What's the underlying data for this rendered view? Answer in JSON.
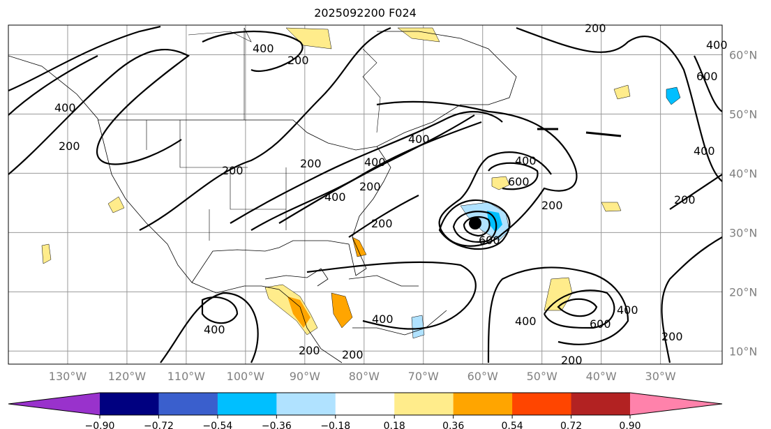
{
  "title": "2025092200 F024",
  "map": {
    "extent": {
      "lon_min": -140,
      "lon_max": -19.6,
      "lat_min": 7.8,
      "lat_max": 65
    },
    "lon_ticks": [
      {
        "value": -130,
        "label": "130°W"
      },
      {
        "value": -120,
        "label": "120°W"
      },
      {
        "value": -110,
        "label": "110°W"
      },
      {
        "value": -100,
        "label": "100°W"
      },
      {
        "value": -90,
        "label": "90°W"
      },
      {
        "value": -80,
        "label": "80°W"
      },
      {
        "value": -70,
        "label": "70°W"
      },
      {
        "value": -60,
        "label": "60°W"
      },
      {
        "value": -50,
        "label": "50°W"
      },
      {
        "value": -40,
        "label": "40°W"
      },
      {
        "value": -30,
        "label": "30°W"
      }
    ],
    "lat_ticks": [
      {
        "value": 60,
        "label": "60°N"
      },
      {
        "value": 50,
        "label": "50°N"
      },
      {
        "value": 40,
        "label": "40°N"
      },
      {
        "value": 30,
        "label": "30°N"
      },
      {
        "value": 20,
        "label": "20°N"
      },
      {
        "value": 10,
        "label": "10°N"
      }
    ],
    "contour_labels": [
      "400",
      "200",
      "400",
      "200",
      "200",
      "400",
      "200",
      "400",
      "400",
      "200",
      "200",
      "400",
      "600",
      "200",
      "600",
      "400",
      "400",
      "600",
      "400",
      "200",
      "200",
      "400",
      "200",
      "200",
      "600",
      "400",
      "200",
      "400",
      "200"
    ]
  },
  "colorbar": {
    "colors": [
      "#9932CC",
      "#000080",
      "#3A5FCD",
      "#00BFFF",
      "#B0E2FF",
      "#FFFFFF",
      "#FFEC8B",
      "#FFA500",
      "#FF4500",
      "#B22222",
      "#FF82AB"
    ],
    "ticks": [
      "−0.90",
      "−0.72",
      "−0.54",
      "−0.36",
      "−0.18",
      "0.18",
      "0.36",
      "0.54",
      "0.72",
      "0.90"
    ]
  }
}
